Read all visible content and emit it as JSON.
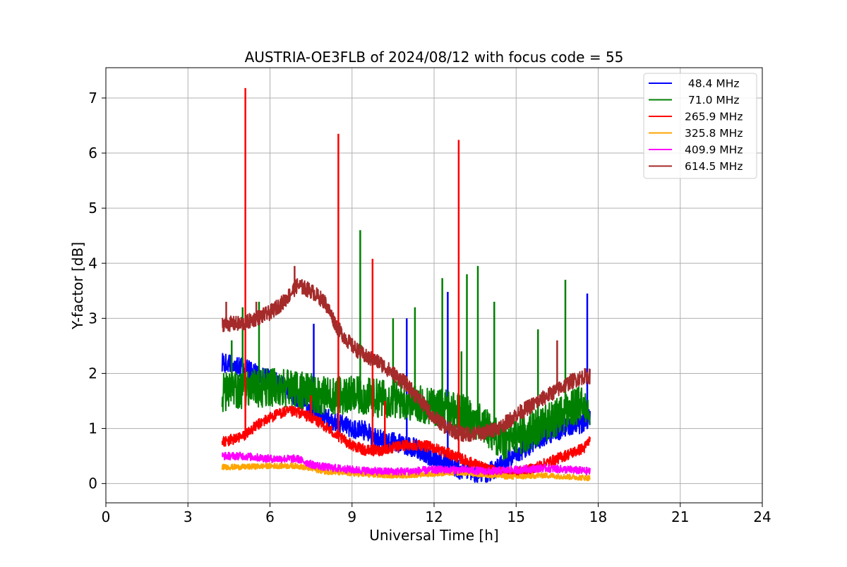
{
  "chart_data": {
    "type": "line",
    "title": "AUSTRIA-OE3FLB of 2024/08/12 with focus code = 55",
    "xlabel": "Universal Time [h]",
    "ylabel": "Y-factor [dB]",
    "xlim": [
      0,
      24
    ],
    "ylim": [
      -0.35,
      7.55
    ],
    "xticks": [
      0,
      3,
      6,
      9,
      12,
      15,
      18,
      21,
      24
    ],
    "yticks": [
      0,
      1,
      2,
      3,
      4,
      5,
      6,
      7
    ],
    "grid": true,
    "legend_position": "top-right",
    "series": [
      {
        "name": " 48.4 MHz",
        "color": "#0000ff",
        "noise": 0.18,
        "x": [
          4.25,
          5.0,
          6.0,
          6.5,
          7.0,
          7.5,
          8.0,
          8.5,
          9.0,
          9.5,
          10.0,
          10.5,
          11.0,
          11.5,
          12.0,
          12.5,
          13.0,
          13.5,
          14.0,
          14.5,
          15.0,
          15.5,
          16.0,
          16.5,
          17.0,
          17.5,
          17.7
        ],
        "y": [
          2.2,
          2.1,
          1.9,
          1.75,
          1.55,
          1.35,
          1.2,
          1.1,
          1.0,
          0.95,
          0.8,
          0.75,
          0.7,
          0.6,
          0.45,
          0.35,
          0.25,
          0.2,
          0.2,
          0.35,
          0.55,
          0.7,
          0.85,
          0.95,
          1.05,
          1.1,
          1.2
        ],
        "spikes": [
          [
            5.0,
            2.5
          ],
          [
            7.6,
            2.9
          ],
          [
            11.0,
            3.0
          ],
          [
            12.5,
            3.48
          ],
          [
            17.6,
            3.45
          ]
        ]
      },
      {
        "name": " 71.0 MHz",
        "color": "#008000",
        "noise": 0.35,
        "x": [
          4.25,
          5.0,
          6.0,
          7.0,
          8.0,
          9.0,
          10.0,
          11.0,
          12.0,
          13.0,
          14.0,
          14.5,
          15.0,
          15.5,
          16.0,
          16.5,
          17.0,
          17.5,
          17.7
        ],
        "y": [
          1.65,
          1.7,
          1.75,
          1.7,
          1.6,
          1.6,
          1.55,
          1.5,
          1.4,
          1.3,
          1.0,
          0.75,
          0.85,
          0.95,
          1.1,
          1.2,
          1.35,
          1.45,
          1.4
        ],
        "spikes": [
          [
            4.6,
            2.6
          ],
          [
            5.0,
            3.2
          ],
          [
            5.6,
            3.3
          ],
          [
            9.3,
            4.6
          ],
          [
            10.5,
            3.0
          ],
          [
            11.3,
            3.2
          ],
          [
            12.3,
            3.73
          ],
          [
            13.0,
            2.4
          ],
          [
            13.2,
            3.8
          ],
          [
            13.6,
            3.95
          ],
          [
            14.2,
            3.3
          ],
          [
            15.8,
            2.8
          ],
          [
            16.8,
            3.7
          ]
        ]
      },
      {
        "name": "265.9 MHz",
        "color": "#ff0000",
        "noise": 0.1,
        "x": [
          4.25,
          5.0,
          5.5,
          6.0,
          6.5,
          7.0,
          7.5,
          8.0,
          8.5,
          9.0,
          9.5,
          10.0,
          10.5,
          11.0,
          11.5,
          12.0,
          12.5,
          13.0,
          13.5,
          14.0,
          14.5,
          15.0,
          15.5,
          16.0,
          16.5,
          17.0,
          17.5,
          17.7
        ],
        "y": [
          0.75,
          0.85,
          1.05,
          1.2,
          1.3,
          1.3,
          1.2,
          1.05,
          0.85,
          0.7,
          0.6,
          0.6,
          0.65,
          0.7,
          0.7,
          0.65,
          0.55,
          0.45,
          0.35,
          0.25,
          0.2,
          0.2,
          0.25,
          0.35,
          0.45,
          0.55,
          0.65,
          0.8
        ],
        "spikes": [
          [
            5.1,
            7.18
          ],
          [
            8.5,
            6.35
          ],
          [
            9.75,
            4.08
          ],
          [
            12.9,
            6.24
          ],
          [
            7.5,
            1.6
          ],
          [
            10.2,
            1.5
          ]
        ]
      },
      {
        "name": "325.8 MHz",
        "color": "#ffa500",
        "noise": 0.05,
        "x": [
          4.25,
          5.0,
          6.0,
          7.0,
          8.0,
          9.0,
          10.0,
          11.0,
          12.0,
          13.0,
          14.0,
          15.0,
          16.0,
          17.0,
          17.7
        ],
        "y": [
          0.3,
          0.3,
          0.32,
          0.32,
          0.22,
          0.18,
          0.15,
          0.15,
          0.18,
          0.2,
          0.15,
          0.12,
          0.15,
          0.12,
          0.1
        ],
        "spikes": []
      },
      {
        "name": "409.9 MHz",
        "color": "#ff00ff",
        "noise": 0.07,
        "x": [
          4.25,
          5.0,
          6.0,
          7.0,
          7.5,
          8.0,
          9.0,
          10.0,
          11.0,
          12.0,
          13.0,
          14.0,
          15.0,
          16.0,
          17.0,
          17.7
        ],
        "y": [
          0.5,
          0.5,
          0.45,
          0.45,
          0.35,
          0.3,
          0.25,
          0.22,
          0.22,
          0.25,
          0.25,
          0.22,
          0.25,
          0.28,
          0.25,
          0.22
        ],
        "spikes": []
      },
      {
        "name": "614.5 MHz",
        "color": "#a52a2a",
        "noise": 0.14,
        "x": [
          4.25,
          5.0,
          5.5,
          6.0,
          6.5,
          7.0,
          7.5,
          8.0,
          8.3,
          8.5,
          9.0,
          9.5,
          10.0,
          10.5,
          11.0,
          11.5,
          12.0,
          12.5,
          13.0,
          13.5,
          14.0,
          14.5,
          15.0,
          15.5,
          16.0,
          16.5,
          17.0,
          17.5,
          17.7
        ],
        "y": [
          2.9,
          2.9,
          3.0,
          3.1,
          3.3,
          3.6,
          3.5,
          3.3,
          3.0,
          2.8,
          2.5,
          2.3,
          2.2,
          2.0,
          1.8,
          1.5,
          1.2,
          1.0,
          0.9,
          0.9,
          0.95,
          1.05,
          1.25,
          1.4,
          1.55,
          1.7,
          1.85,
          1.95,
          1.95
        ],
        "spikes": [
          [
            4.4,
            3.3
          ],
          [
            5.5,
            3.3
          ],
          [
            6.9,
            3.95
          ],
          [
            8.0,
            3.3
          ],
          [
            16.5,
            2.6
          ]
        ]
      }
    ]
  }
}
